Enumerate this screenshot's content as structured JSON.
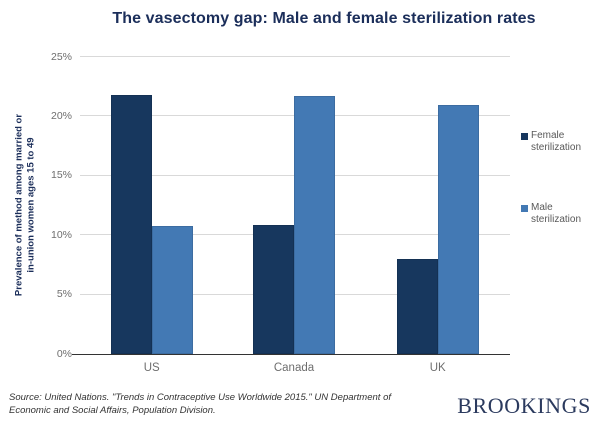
{
  "title": "The vasectomy gap: Male and female sterilization rates",
  "chart_data": {
    "type": "bar",
    "categories": [
      "US",
      "Canada",
      "UK"
    ],
    "series": [
      {
        "name": "Female sterilization",
        "color": "#17375e",
        "values": [
          21.8,
          10.9,
          8.0
        ]
      },
      {
        "name": "Male sterilization",
        "color": "#4379b4",
        "values": [
          10.8,
          21.7,
          21.0
        ]
      }
    ],
    "title": "The vasectomy gap: Male and female sterilization rates",
    "xlabel": "",
    "ylabel": "Prevalence of method among married or\nin-union women ages 15 to 49",
    "ylim": [
      0,
      25
    ],
    "yticks": [
      {
        "value": 0,
        "label": "0%"
      },
      {
        "value": 5,
        "label": "5%"
      },
      {
        "value": 10,
        "label": "10%"
      },
      {
        "value": 15,
        "label": "15%"
      },
      {
        "value": 20,
        "label": "20%"
      },
      {
        "value": 25,
        "label": "25%"
      }
    ],
    "grid": true,
    "legend_position": "right"
  },
  "footer": {
    "source_line1": "Source: United Nations. \"Trends in Contraceptive Use Worldwide 2015.\" UN Department of",
    "source_line2": "Economic and Social Affairs, Population Division.",
    "brand": "BROOKINGS"
  },
  "colors": {
    "title_navy": "#1b2e5a",
    "female_bar": "#17375e",
    "male_bar": "#4379b4",
    "gridline": "#d9d9d9",
    "axis_line": "#333333",
    "tick_text": "#6e6e6e",
    "legend_text": "#595959",
    "brand_navy": "#2b3a5e"
  }
}
